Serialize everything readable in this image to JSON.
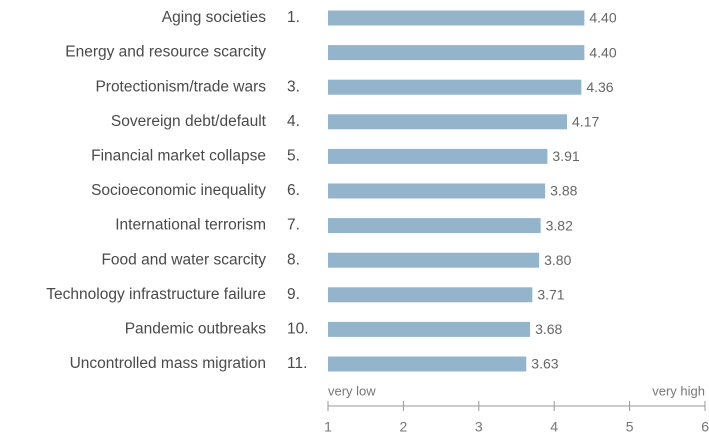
{
  "chart_data": {
    "type": "bar",
    "orientation": "horizontal",
    "categories": [
      "Aging societies",
      "Energy and resource scarcity",
      "Protectionism/trade wars",
      "Sovereign debt/default",
      "Financial market collapse",
      "Socioeconomic inequality",
      "International terrorism",
      "Food and water scarcity",
      "Technology infrastructure failure",
      "Pandemic outbreaks",
      "Uncontrolled mass migration"
    ],
    "ranks": [
      "1.",
      null,
      "3.",
      "4.",
      "5.",
      "6.",
      "7.",
      "8.",
      "9.",
      "10.",
      "11."
    ],
    "values": [
      4.4,
      4.4,
      4.36,
      4.17,
      3.91,
      3.88,
      3.82,
      3.8,
      3.71,
      3.68,
      3.63
    ],
    "value_labels": [
      "4.40",
      "4.40",
      "4.36",
      "4.17",
      "3.91",
      "3.88",
      "3.82",
      "3.80",
      "3.71",
      "3.68",
      "3.63"
    ],
    "color": "#93b4cb",
    "xlim": [
      1,
      6
    ],
    "xticks": [
      1,
      2,
      3,
      4,
      5,
      6
    ],
    "axis_low_label": "very low",
    "axis_high_label": "very high"
  }
}
